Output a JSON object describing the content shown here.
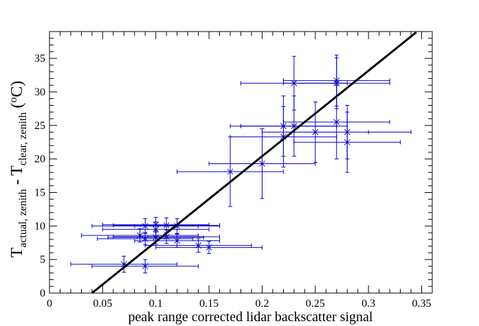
{
  "chart_data": {
    "type": "scatter",
    "xlabel": "peak range corrected lidar backscatter signal",
    "ylabel_parts": {
      "t1": "T",
      "s1": "actual, zenith",
      "dash": " - ",
      "t2": "T",
      "s2": "clear, zenith",
      "unit_open": " (",
      "unit_sup": "o",
      "unit_close": "C)"
    },
    "xlim": [
      0,
      0.36
    ],
    "ylim": [
      0,
      39
    ],
    "x_ticks": [
      0,
      0.05,
      0.1,
      0.15,
      0.2,
      0.25,
      0.3,
      0.35
    ],
    "x_tick_labels": [
      "0",
      "0.05",
      "0.1",
      "0.15",
      "0.2",
      "0.25",
      "0.3",
      "0.35"
    ],
    "y_ticks": [
      0,
      5,
      10,
      15,
      20,
      25,
      30,
      35
    ],
    "y_tick_labels": [
      "0",
      "5",
      "10",
      "15",
      "20",
      "25",
      "30",
      "35"
    ],
    "grid": false,
    "colors": {
      "points": "#0000cc",
      "fit": "#000000",
      "axes": "#000000"
    },
    "points": [
      {
        "x": 0.07,
        "y": 4.3,
        "xerr": 0.05,
        "yerr": 1.2
      },
      {
        "x": 0.09,
        "y": 4.0,
        "xerr": 0.05,
        "yerr": 1.0
      },
      {
        "x": 0.085,
        "y": 8.6,
        "xerr": 0.055,
        "yerr": 1.0
      },
      {
        "x": 0.09,
        "y": 10.0,
        "xerr": 0.05,
        "yerr": 1.1
      },
      {
        "x": 0.09,
        "y": 8.1,
        "xerr": 0.045,
        "yerr": 0.9
      },
      {
        "x": 0.1,
        "y": 10.2,
        "xerr": 0.05,
        "yerr": 1.1
      },
      {
        "x": 0.1,
        "y": 9.5,
        "xerr": 0.05,
        "yerr": 1.1
      },
      {
        "x": 0.1,
        "y": 8.3,
        "xerr": 0.045,
        "yerr": 1.0
      },
      {
        "x": 0.11,
        "y": 10.1,
        "xerr": 0.05,
        "yerr": 1.1
      },
      {
        "x": 0.11,
        "y": 8.4,
        "xerr": 0.05,
        "yerr": 1.0
      },
      {
        "x": 0.12,
        "y": 10.0,
        "xerr": 0.04,
        "yerr": 1.1
      },
      {
        "x": 0.12,
        "y": 7.8,
        "xerr": 0.04,
        "yerr": 1.0
      },
      {
        "x": 0.14,
        "y": 7.1,
        "xerr": 0.05,
        "yerr": 1.0
      },
      {
        "x": 0.15,
        "y": 6.8,
        "xerr": 0.05,
        "yerr": 0.9
      },
      {
        "x": 0.17,
        "y": 18.1,
        "xerr": 0.05,
        "yerr": 5.2
      },
      {
        "x": 0.2,
        "y": 19.3,
        "xerr": 0.05,
        "yerr": 5.2
      },
      {
        "x": 0.22,
        "y": 24.9,
        "xerr": 0.05,
        "yerr": 4.5
      },
      {
        "x": 0.22,
        "y": 23.3,
        "xerr": 0.05,
        "yerr": 4.5
      },
      {
        "x": 0.23,
        "y": 31.3,
        "xerr": 0.05,
        "yerr": 4.0
      },
      {
        "x": 0.23,
        "y": 24.9,
        "xerr": 0.05,
        "yerr": 4.5
      },
      {
        "x": 0.25,
        "y": 24.0,
        "xerr": 0.05,
        "yerr": 4.5
      },
      {
        "x": 0.27,
        "y": 31.7,
        "xerr": 0.05,
        "yerr": 3.8
      },
      {
        "x": 0.27,
        "y": 31.3,
        "xerr": 0.05,
        "yerr": 3.8
      },
      {
        "x": 0.27,
        "y": 25.5,
        "xerr": 0.05,
        "yerr": 5.5
      },
      {
        "x": 0.28,
        "y": 24.0,
        "xerr": 0.06,
        "yerr": 4.0
      },
      {
        "x": 0.28,
        "y": 22.5,
        "xerr": 0.05,
        "yerr": 4.5
      }
    ],
    "fit_line": {
      "x": [
        0.04,
        0.345
      ],
      "y": [
        0.0,
        38.9
      ]
    }
  }
}
